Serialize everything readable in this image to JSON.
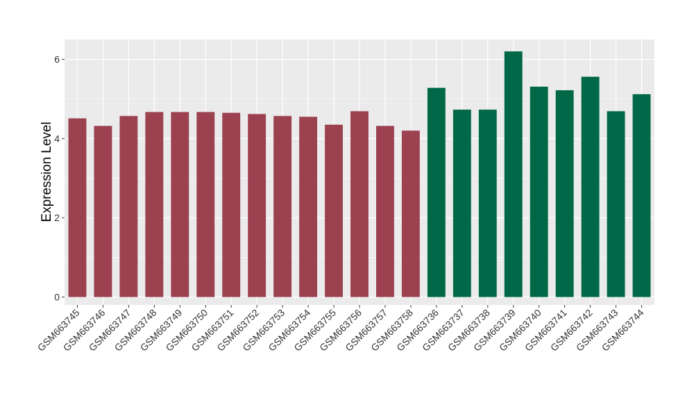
{
  "chart_data": {
    "type": "bar",
    "title": "",
    "xlabel": "",
    "ylabel": "Expression Level",
    "ylim": [
      -0.2,
      6.5
    ],
    "yticks": [
      0,
      2,
      4,
      6
    ],
    "grid": true,
    "legend": "none",
    "categories": [
      "GSM663745",
      "GSM663746",
      "GSM663747",
      "GSM663748",
      "GSM663749",
      "GSM663750",
      "GSM663751",
      "GSM663752",
      "GSM663753",
      "GSM663754",
      "GSM663755",
      "GSM663756",
      "GSM663757",
      "GSM663758",
      "GSM663736",
      "GSM663737",
      "GSM663738",
      "GSM663739",
      "GSM663740",
      "GSM663741",
      "GSM663742",
      "GSM663743",
      "GSM663744"
    ],
    "values": [
      4.51,
      4.32,
      4.57,
      4.67,
      4.67,
      4.67,
      4.65,
      4.62,
      4.57,
      4.55,
      4.35,
      4.69,
      4.32,
      4.2,
      5.28,
      4.73,
      4.73,
      6.2,
      5.31,
      5.22,
      5.56,
      4.69,
      5.12
    ],
    "groups": [
      0,
      0,
      0,
      0,
      0,
      0,
      0,
      0,
      0,
      0,
      0,
      0,
      0,
      0,
      1,
      1,
      1,
      1,
      1,
      1,
      1,
      1,
      1
    ],
    "colors": {
      "group_0": "#9b4150",
      "group_1": "#006847",
      "panel_background": "#ebebeb",
      "gridline": "#ffffff"
    }
  }
}
